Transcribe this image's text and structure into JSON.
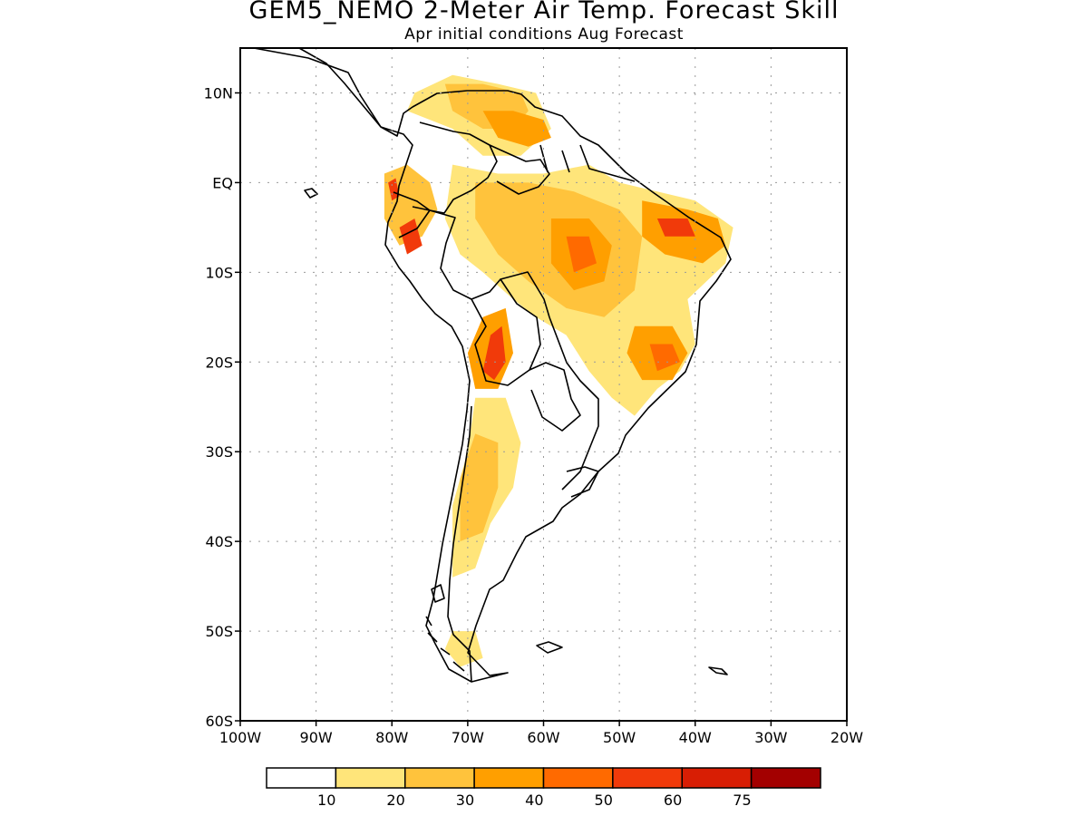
{
  "title": "GEM5_NEMO 2-Meter Air Temp. Forecast Skill",
  "subtitle": "Apr initial conditions  Aug Forecast",
  "map": {
    "region": "South America",
    "lon_range": [
      -100,
      -20
    ],
    "lat_range": [
      -60,
      15
    ],
    "grid": "dotted",
    "lat_ticks": [
      {
        "value": 10,
        "label": "10N"
      },
      {
        "value": 0,
        "label": "EQ"
      },
      {
        "value": -10,
        "label": "10S"
      },
      {
        "value": -20,
        "label": "20S"
      },
      {
        "value": -30,
        "label": "30S"
      },
      {
        "value": -40,
        "label": "40S"
      },
      {
        "value": -50,
        "label": "50S"
      },
      {
        "value": -60,
        "label": "60S"
      }
    ],
    "lon_ticks": [
      {
        "value": -100,
        "label": "100W"
      },
      {
        "value": -90,
        "label": "90W"
      },
      {
        "value": -80,
        "label": "80W"
      },
      {
        "value": -70,
        "label": "70W"
      },
      {
        "value": -60,
        "label": "60W"
      },
      {
        "value": -50,
        "label": "50W"
      },
      {
        "value": -40,
        "label": "40W"
      },
      {
        "value": -30,
        "label": "30W"
      },
      {
        "value": -20,
        "label": "20W"
      }
    ]
  },
  "colorbar": {
    "colors": [
      "#ffffff",
      "#ffe57a",
      "#ffc33c",
      "#ff9f00",
      "#ff6a00",
      "#f13a0a",
      "#d81e04",
      "#a30000"
    ],
    "labels": [
      "10",
      "20",
      "30",
      "40",
      "50",
      "60",
      "75"
    ]
  },
  "skill_fields": [
    {
      "name": "northern-andes",
      "level": 1,
      "outline": [
        [
          -77,
          10
        ],
        [
          -72,
          12
        ],
        [
          -66,
          11
        ],
        [
          -61,
          10
        ],
        [
          -59,
          6
        ],
        [
          -63,
          3
        ],
        [
          -68,
          3
        ],
        [
          -72,
          6
        ],
        [
          -75,
          7
        ],
        [
          -78,
          8
        ]
      ]
    },
    {
      "name": "venezuela-north",
      "level": 2,
      "outline": [
        [
          -73,
          11
        ],
        [
          -68,
          11
        ],
        [
          -63,
          10
        ],
        [
          -62,
          8
        ],
        [
          -64,
          6
        ],
        [
          -68,
          6
        ],
        [
          -72,
          8
        ]
      ]
    },
    {
      "name": "orinoco",
      "level": 3,
      "outline": [
        [
          -68,
          8
        ],
        [
          -64,
          8
        ],
        [
          -60,
          7
        ],
        [
          -59,
          5
        ],
        [
          -62,
          4
        ],
        [
          -66,
          5
        ]
      ]
    },
    {
      "name": "ecuador-coast",
      "level": 2,
      "outline": [
        [
          -81,
          1
        ],
        [
          -78,
          2
        ],
        [
          -75,
          0
        ],
        [
          -74,
          -3
        ],
        [
          -76,
          -6
        ],
        [
          -79,
          -7
        ],
        [
          -81,
          -4
        ]
      ]
    },
    {
      "name": "ecuador-hot",
      "level": 5,
      "outline": [
        [
          -80.5,
          0
        ],
        [
          -79.5,
          0.5
        ],
        [
          -79,
          -1.5
        ],
        [
          -80,
          -2
        ]
      ]
    },
    {
      "name": "peru-north-hot",
      "level": 5,
      "outline": [
        [
          -79,
          -5
        ],
        [
          -77,
          -4
        ],
        [
          -76,
          -7
        ],
        [
          -78,
          -8
        ]
      ]
    },
    {
      "name": "amazon",
      "level": 1,
      "outline": [
        [
          -72,
          2
        ],
        [
          -66,
          1
        ],
        [
          -60,
          1
        ],
        [
          -54,
          2
        ],
        [
          -50,
          0
        ],
        [
          -45,
          -1
        ],
        [
          -40,
          -2
        ],
        [
          -35,
          -5
        ],
        [
          -36,
          -9
        ],
        [
          -41,
          -13
        ],
        [
          -40,
          -18
        ],
        [
          -42,
          -21
        ],
        [
          -45,
          -23
        ],
        [
          -48,
          -26
        ],
        [
          -51,
          -24
        ],
        [
          -54,
          -21
        ],
        [
          -57,
          -17
        ],
        [
          -61,
          -15
        ],
        [
          -64,
          -13
        ],
        [
          -68,
          -10
        ],
        [
          -71,
          -8
        ],
        [
          -73,
          -4
        ]
      ]
    },
    {
      "name": "amazon-core",
      "level": 2,
      "outline": [
        [
          -69,
          0
        ],
        [
          -62,
          0
        ],
        [
          -56,
          -1
        ],
        [
          -50,
          -3
        ],
        [
          -47,
          -6
        ],
        [
          -48,
          -12
        ],
        [
          -52,
          -15
        ],
        [
          -57,
          -14
        ],
        [
          -62,
          -11
        ],
        [
          -66,
          -8
        ],
        [
          -69,
          -4
        ]
      ]
    },
    {
      "name": "central-brazil",
      "level": 3,
      "outline": [
        [
          -59,
          -4
        ],
        [
          -54,
          -4
        ],
        [
          -51,
          -7
        ],
        [
          -52,
          -11
        ],
        [
          -56,
          -12
        ],
        [
          -59,
          -9
        ]
      ]
    },
    {
      "name": "central-brazil-hot",
      "level": 4,
      "outline": [
        [
          -57,
          -6
        ],
        [
          -54,
          -6
        ],
        [
          -53,
          -9
        ],
        [
          -56,
          -10
        ]
      ]
    },
    {
      "name": "northeast-brazil",
      "level": 3,
      "outline": [
        [
          -47,
          -2
        ],
        [
          -41,
          -3
        ],
        [
          -37,
          -4
        ],
        [
          -36,
          -7
        ],
        [
          -39,
          -9
        ],
        [
          -44,
          -8
        ],
        [
          -47,
          -6
        ]
      ]
    },
    {
      "name": "northeast-hot",
      "level": 5,
      "outline": [
        [
          -45,
          -4
        ],
        [
          -41,
          -4
        ],
        [
          -40,
          -6
        ],
        [
          -44,
          -6
        ]
      ]
    },
    {
      "name": "southeast-brazil",
      "level": 3,
      "outline": [
        [
          -48,
          -16
        ],
        [
          -43,
          -16
        ],
        [
          -41,
          -19
        ],
        [
          -43,
          -22
        ],
        [
          -47,
          -22
        ],
        [
          -49,
          -19
        ]
      ]
    },
    {
      "name": "southeast-hot",
      "level": 4,
      "outline": [
        [
          -46,
          -18
        ],
        [
          -43,
          -18
        ],
        [
          -42,
          -20
        ],
        [
          -45,
          -21
        ]
      ]
    },
    {
      "name": "bolivia-chaco",
      "level": 3,
      "outline": [
        [
          -68,
          -15
        ],
        [
          -65,
          -14
        ],
        [
          -64,
          -19
        ],
        [
          -66,
          -23
        ],
        [
          -69,
          -23
        ],
        [
          -70,
          -19
        ]
      ]
    },
    {
      "name": "bolivia-hot",
      "level": 5,
      "outline": [
        [
          -67,
          -17
        ],
        [
          -65.5,
          -16
        ],
        [
          -65,
          -20
        ],
        [
          -66.5,
          -22
        ],
        [
          -68,
          -21
        ]
      ]
    },
    {
      "name": "argentina-west",
      "level": 1,
      "outline": [
        [
          -69,
          -24
        ],
        [
          -65,
          -24
        ],
        [
          -63,
          -29
        ],
        [
          -64,
          -34
        ],
        [
          -67,
          -38
        ],
        [
          -69,
          -43
        ],
        [
          -72,
          -44
        ],
        [
          -72,
          -36
        ],
        [
          -70,
          -30
        ]
      ]
    },
    {
      "name": "argentina-west-core",
      "level": 2,
      "outline": [
        [
          -69,
          -28
        ],
        [
          -66,
          -29
        ],
        [
          -66,
          -34
        ],
        [
          -68,
          -39
        ],
        [
          -71,
          -40
        ],
        [
          -71,
          -33
        ]
      ]
    },
    {
      "name": "patagonia-south",
      "level": 1,
      "outline": [
        [
          -72,
          -50
        ],
        [
          -69,
          -50
        ],
        [
          -68,
          -53
        ],
        [
          -71,
          -54
        ],
        [
          -73,
          -52
        ]
      ]
    }
  ]
}
